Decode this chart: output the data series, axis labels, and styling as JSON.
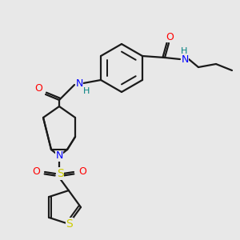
{
  "bg_color": "#e8e8e8",
  "line_color": "#1a1a1a",
  "bond_width": 1.6,
  "atom_colors": {
    "N": "#0000ff",
    "O": "#ff0000",
    "S_sulfonyl": "#cccc00",
    "S_thiophene": "#cccc00",
    "H": "#008080",
    "C": "#1a1a1a"
  },
  "font_size": 9,
  "fig_size": [
    3.0,
    3.0
  ],
  "dpi": 100
}
